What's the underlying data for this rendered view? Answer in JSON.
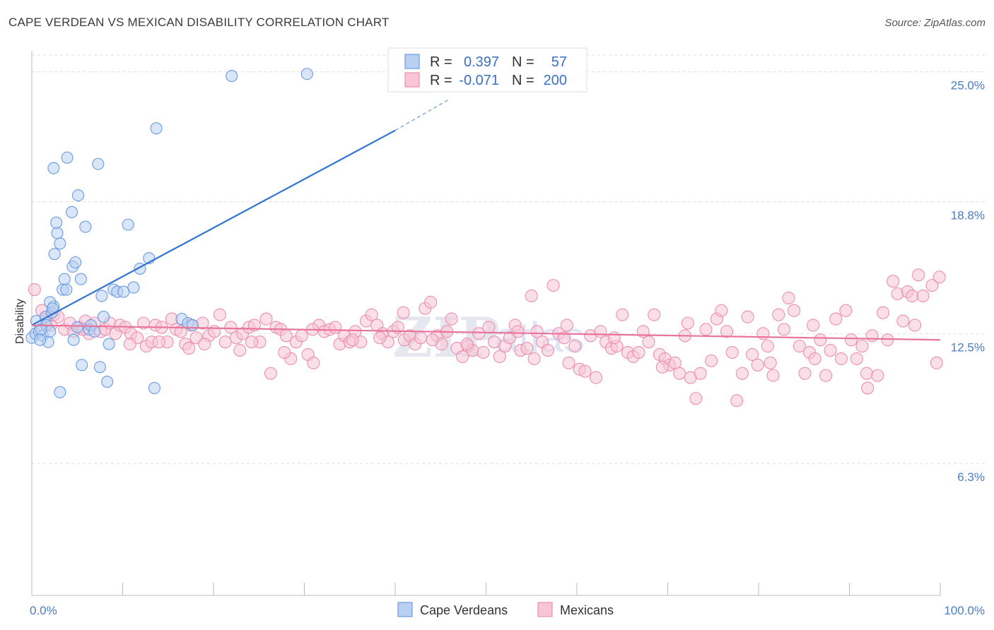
{
  "header": {
    "title": "CAPE VERDEAN VS MEXICAN DISABILITY CORRELATION CHART",
    "source": "Source: ZipAtlas.com"
  },
  "watermark": {
    "zip": "ZIP",
    "atlas": "atlas"
  },
  "colors": {
    "blue": "#6b9be0",
    "blue_fill": "#b9d0f3",
    "blue_line": "#2f74d0",
    "pink": "#ec8fae",
    "pink_fill": "#f7c5d6",
    "pink_line": "#e8749c",
    "tick_text": "#4a7cc9",
    "grid": "#dedede"
  },
  "legend": {
    "rows": [
      {
        "r_label": "R =",
        "r_value": "0.397",
        "n_label": "N =",
        "n_value": "57",
        "color": "blue"
      },
      {
        "r_label": "R =",
        "r_value": "-0.071",
        "n_label": "N =",
        "n_value": "200",
        "color": "pink"
      }
    ]
  },
  "bottom_legend": [
    "Cape Verdeans",
    "Mexicans"
  ],
  "chart_data": {
    "type": "scatter",
    "title": "CAPE VERDEAN VS MEXICAN DISABILITY CORRELATION CHART",
    "xlabel": "",
    "ylabel": "Disability",
    "xlim": [
      0,
      100
    ],
    "ylim": [
      0,
      26
    ],
    "x_tick_labels": [
      "0.0%",
      "100.0%"
    ],
    "y_ticks": [
      6.3,
      12.5,
      18.8,
      25.0
    ],
    "y_tick_labels": [
      "6.3%",
      "12.5%",
      "18.8%",
      "25.0%"
    ],
    "grid": "horizontal dashed",
    "legend_position": "top-center",
    "series": [
      {
        "name": "Cape Verdeans",
        "color": "blue",
        "r": 0.397,
        "n": 57,
        "trend": {
          "x": [
            0,
            40
          ],
          "y": [
            12.9,
            22.2
          ],
          "dashed_to": [
            46,
            23.7
          ]
        },
        "points": [
          [
            0.0,
            12.3
          ],
          [
            0.4,
            12.5
          ],
          [
            0.8,
            12.6
          ],
          [
            0.5,
            13.1
          ],
          [
            1.2,
            12.4
          ],
          [
            1.5,
            13.3
          ],
          [
            1.6,
            12.9
          ],
          [
            1.8,
            12.1
          ],
          [
            2.0,
            12.6
          ],
          [
            2.2,
            13.5
          ],
          [
            2.4,
            13.8
          ],
          [
            2.0,
            14.0
          ],
          [
            2.5,
            16.3
          ],
          [
            2.8,
            17.3
          ],
          [
            2.7,
            17.8
          ],
          [
            3.1,
            16.8
          ],
          [
            3.4,
            14.6
          ],
          [
            3.6,
            15.1
          ],
          [
            2.4,
            20.4
          ],
          [
            3.9,
            20.9
          ],
          [
            4.4,
            18.3
          ],
          [
            5.1,
            19.1
          ],
          [
            4.5,
            15.7
          ],
          [
            4.8,
            15.9
          ],
          [
            5.4,
            15.1
          ],
          [
            5.9,
            17.6
          ],
          [
            5.0,
            12.8
          ],
          [
            5.5,
            11.0
          ],
          [
            4.6,
            12.2
          ],
          [
            6.3,
            12.7
          ],
          [
            6.5,
            12.9
          ],
          [
            3.1,
            9.7
          ],
          [
            7.3,
            20.6
          ],
          [
            7.7,
            14.3
          ],
          [
            7.9,
            13.3
          ],
          [
            8.5,
            12.0
          ],
          [
            8.3,
            10.2
          ],
          [
            7.5,
            10.9
          ],
          [
            9.0,
            14.6
          ],
          [
            9.4,
            14.5
          ],
          [
            10.1,
            14.5
          ],
          [
            10.6,
            17.7
          ],
          [
            11.2,
            14.7
          ],
          [
            11.9,
            15.6
          ],
          [
            12.9,
            16.1
          ],
          [
            13.7,
            22.3
          ],
          [
            13.5,
            9.9
          ],
          [
            16.5,
            13.2
          ],
          [
            17.2,
            13.0
          ],
          [
            17.7,
            12.9
          ],
          [
            22.0,
            24.8
          ],
          [
            30.3,
            24.9
          ],
          [
            1.0,
            12.7
          ],
          [
            3.8,
            14.6
          ],
          [
            0.9,
            12.2
          ],
          [
            2.3,
            13.7
          ],
          [
            6.9,
            12.6
          ]
        ]
      },
      {
        "name": "Mexicans",
        "color": "pink",
        "r": -0.071,
        "n": 200,
        "trend": {
          "x": [
            0,
            100
          ],
          "y": [
            12.9,
            12.2
          ]
        },
        "points": [
          [
            0.3,
            14.6
          ],
          [
            1.1,
            13.6
          ],
          [
            1.6,
            13.2
          ],
          [
            2.1,
            12.9
          ],
          [
            2.4,
            13.4
          ],
          [
            2.9,
            13.3
          ],
          [
            3.6,
            12.7
          ],
          [
            4.2,
            13.0
          ],
          [
            4.6,
            12.6
          ],
          [
            5.3,
            12.8
          ],
          [
            5.9,
            13.1
          ],
          [
            6.3,
            12.5
          ],
          [
            6.9,
            13.0
          ],
          [
            7.6,
            12.6
          ],
          [
            8.1,
            12.7
          ],
          [
            8.6,
            13.0
          ],
          [
            9.2,
            12.5
          ],
          [
            9.7,
            12.9
          ],
          [
            10.3,
            12.8
          ],
          [
            10.9,
            12.5
          ],
          [
            11.6,
            12.3
          ],
          [
            12.3,
            13.0
          ],
          [
            12.6,
            11.9
          ],
          [
            13.2,
            12.1
          ],
          [
            13.6,
            12.9
          ],
          [
            14.3,
            12.8
          ],
          [
            14.9,
            12.1
          ],
          [
            15.4,
            13.2
          ],
          [
            15.9,
            12.7
          ],
          [
            16.4,
            12.6
          ],
          [
            16.9,
            12.0
          ],
          [
            17.5,
            12.9
          ],
          [
            18.1,
            12.3
          ],
          [
            18.8,
            13.0
          ],
          [
            19.5,
            12.4
          ],
          [
            20.1,
            12.6
          ],
          [
            20.7,
            13.4
          ],
          [
            21.3,
            12.1
          ],
          [
            21.9,
            12.8
          ],
          [
            22.5,
            12.3
          ],
          [
            23.2,
            12.5
          ],
          [
            23.9,
            12.8
          ],
          [
            24.5,
            12.9
          ],
          [
            25.1,
            12.1
          ],
          [
            25.8,
            13.2
          ],
          [
            26.3,
            10.6
          ],
          [
            26.9,
            12.8
          ],
          [
            27.4,
            12.7
          ],
          [
            28.0,
            12.4
          ],
          [
            28.5,
            11.3
          ],
          [
            29.1,
            12.1
          ],
          [
            29.7,
            12.4
          ],
          [
            30.4,
            11.5
          ],
          [
            31.0,
            11.1
          ],
          [
            31.6,
            12.9
          ],
          [
            32.2,
            12.6
          ],
          [
            32.8,
            12.7
          ],
          [
            33.4,
            12.8
          ],
          [
            33.9,
            12.0
          ],
          [
            34.4,
            12.4
          ],
          [
            35.0,
            12.1
          ],
          [
            35.6,
            12.6
          ],
          [
            36.2,
            12.1
          ],
          [
            36.8,
            13.1
          ],
          [
            37.4,
            13.4
          ],
          [
            38.0,
            12.9
          ],
          [
            38.6,
            12.5
          ],
          [
            39.2,
            12.1
          ],
          [
            39.8,
            12.6
          ],
          [
            40.3,
            12.8
          ],
          [
            41.0,
            12.2
          ],
          [
            41.6,
            12.4
          ],
          [
            42.2,
            12.0
          ],
          [
            42.8,
            12.3
          ],
          [
            43.3,
            13.7
          ],
          [
            43.9,
            14.0
          ],
          [
            44.6,
            12.4
          ],
          [
            45.1,
            12.0
          ],
          [
            45.7,
            12.6
          ],
          [
            46.2,
            13.2
          ],
          [
            46.8,
            11.8
          ],
          [
            47.4,
            11.4
          ],
          [
            48.0,
            11.9
          ],
          [
            48.5,
            11.7
          ],
          [
            49.2,
            12.5
          ],
          [
            49.7,
            11.6
          ],
          [
            50.3,
            12.8
          ],
          [
            50.9,
            12.1
          ],
          [
            51.5,
            11.4
          ],
          [
            52.1,
            11.9
          ],
          [
            52.6,
            12.3
          ],
          [
            53.2,
            12.9
          ],
          [
            53.8,
            11.7
          ],
          [
            54.5,
            11.8
          ],
          [
            55.0,
            14.3
          ],
          [
            55.6,
            12.6
          ],
          [
            56.2,
            12.1
          ],
          [
            56.8,
            11.7
          ],
          [
            57.4,
            14.8
          ],
          [
            58.0,
            12.5
          ],
          [
            58.6,
            12.3
          ],
          [
            59.1,
            11.1
          ],
          [
            59.8,
            11.9
          ],
          [
            60.3,
            10.8
          ],
          [
            60.9,
            10.7
          ],
          [
            61.5,
            12.4
          ],
          [
            62.1,
            10.4
          ],
          [
            62.6,
            12.6
          ],
          [
            63.2,
            12.1
          ],
          [
            63.8,
            11.8
          ],
          [
            64.4,
            11.9
          ],
          [
            65.0,
            13.4
          ],
          [
            65.6,
            11.6
          ],
          [
            66.2,
            11.4
          ],
          [
            66.8,
            11.6
          ],
          [
            67.3,
            12.6
          ],
          [
            67.9,
            12.1
          ],
          [
            68.5,
            13.4
          ],
          [
            69.1,
            11.5
          ],
          [
            69.7,
            11.3
          ],
          [
            70.2,
            11.0
          ],
          [
            70.8,
            11.1
          ],
          [
            71.3,
            10.6
          ],
          [
            71.9,
            12.4
          ],
          [
            72.5,
            10.4
          ],
          [
            73.1,
            9.4
          ],
          [
            73.6,
            10.6
          ],
          [
            74.2,
            12.7
          ],
          [
            74.8,
            11.2
          ],
          [
            75.4,
            13.2
          ],
          [
            75.9,
            13.6
          ],
          [
            76.5,
            12.6
          ],
          [
            77.1,
            11.6
          ],
          [
            77.6,
            9.3
          ],
          [
            78.2,
            10.6
          ],
          [
            78.8,
            13.3
          ],
          [
            79.3,
            11.5
          ],
          [
            79.9,
            11.0
          ],
          [
            80.5,
            12.5
          ],
          [
            81.0,
            11.9
          ],
          [
            81.6,
            10.5
          ],
          [
            82.2,
            13.4
          ],
          [
            82.8,
            12.7
          ],
          [
            83.3,
            14.2
          ],
          [
            83.9,
            13.6
          ],
          [
            84.5,
            11.9
          ],
          [
            85.1,
            10.6
          ],
          [
            85.6,
            11.6
          ],
          [
            86.2,
            11.3
          ],
          [
            86.8,
            12.2
          ],
          [
            87.4,
            10.5
          ],
          [
            87.9,
            11.7
          ],
          [
            88.5,
            13.2
          ],
          [
            89.1,
            11.3
          ],
          [
            89.6,
            13.6
          ],
          [
            90.2,
            12.2
          ],
          [
            90.8,
            11.3
          ],
          [
            91.4,
            11.9
          ],
          [
            91.9,
            10.6
          ],
          [
            92.5,
            12.4
          ],
          [
            93.1,
            10.5
          ],
          [
            93.7,
            13.5
          ],
          [
            94.2,
            12.2
          ],
          [
            94.8,
            15.0
          ],
          [
            95.3,
            14.4
          ],
          [
            95.9,
            13.1
          ],
          [
            96.4,
            14.5
          ],
          [
            96.9,
            14.3
          ],
          [
            97.6,
            15.3
          ],
          [
            98.1,
            14.3
          ],
          [
            99.1,
            14.8
          ],
          [
            99.6,
            11.1
          ],
          [
            99.9,
            15.2
          ],
          [
            19.0,
            12.0
          ],
          [
            22.9,
            11.7
          ],
          [
            27.8,
            11.6
          ],
          [
            35.3,
            12.2
          ],
          [
            40.9,
            13.5
          ],
          [
            44.1,
            12.2
          ],
          [
            53.5,
            12.6
          ],
          [
            58.9,
            12.9
          ],
          [
            64.1,
            12.3
          ],
          [
            69.4,
            10.9
          ],
          [
            72.2,
            13.0
          ],
          [
            81.3,
            11.1
          ],
          [
            86.0,
            12.9
          ],
          [
            92.0,
            9.9
          ],
          [
            97.2,
            12.9
          ],
          [
            5.6,
            12.7
          ],
          [
            10.8,
            12.0
          ],
          [
            14.0,
            12.1
          ],
          [
            17.3,
            11.8
          ],
          [
            24.2,
            12.1
          ],
          [
            30.9,
            12.7
          ],
          [
            38.3,
            12.3
          ],
          [
            47.9,
            12.0
          ],
          [
            55.3,
            11.3
          ]
        ]
      }
    ]
  }
}
